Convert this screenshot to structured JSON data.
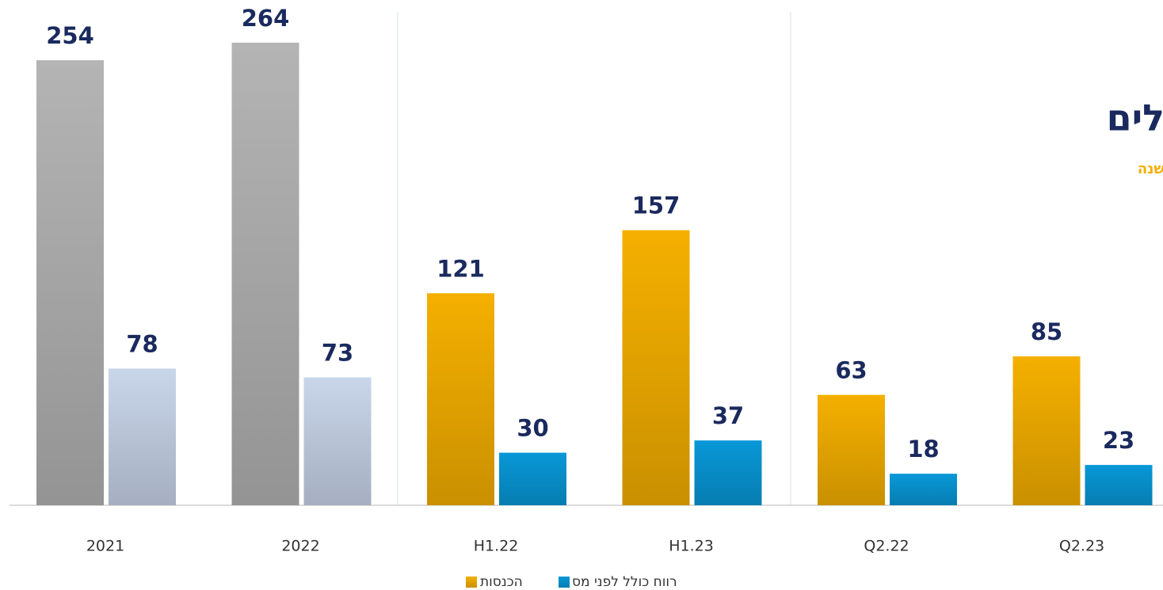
{
  "chart_data": {
    "type": "bar",
    "categories": [
      "2021",
      "2022",
      "H1.22",
      "H1.23",
      "Q2.22",
      "Q2.23"
    ],
    "series": [
      {
        "name": "הכנסות",
        "color": "#f5b000",
        "colors": [
          "#b4b4b4",
          "#b4b4b4",
          "#f5b000",
          "#f5b000",
          "#f5b000",
          "#f5b000"
        ],
        "values": [
          254,
          264,
          121,
          157,
          63,
          85
        ]
      },
      {
        "name": "רווח כולל לפני מס",
        "color": "#0898d8",
        "colors": [
          "#c9d6ea",
          "#c9d6ea",
          "#0898d8",
          "#0898d8",
          "#0898d8",
          "#0898d8"
        ],
        "values": [
          78,
          73,
          30,
          37,
          18,
          23
        ]
      }
    ],
    "ylim": [
      0,
      290
    ],
    "annotations": [
      "לים",
      "שנה"
    ]
  }
}
